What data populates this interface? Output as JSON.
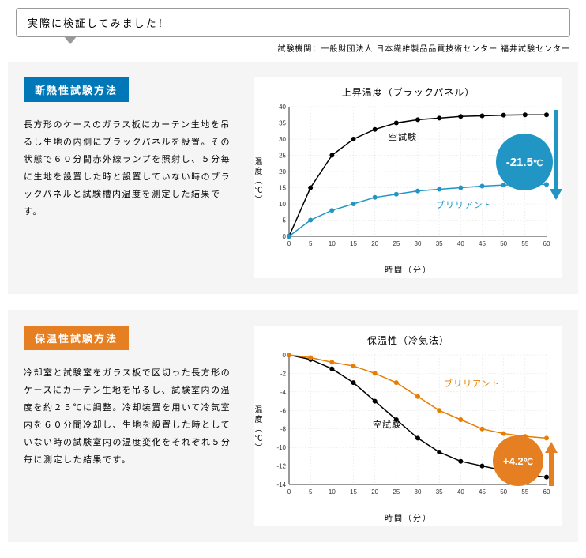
{
  "header": {
    "bubble_text": "実際に検証してみました！",
    "institution": "試験機関：一般財団法人 日本繊維製品品質技術センター 福井試験センター"
  },
  "panel1": {
    "badge": "断熱性試験方法",
    "desc": "長方形のケースのガラス板にカーテン生地を吊るし生地の内側にブラックパネルを設置。その状態で６０分間赤外線ランプを照射し、５分毎に生地を設置した時と設置していない時のブラックパネルと試験槽内温度を測定した結果です。",
    "chart": {
      "title": "上昇温度（ブラックパネル）",
      "ylabel": "温度（℃）",
      "xlabel": "時間（分）",
      "x_ticks": [
        0,
        5,
        10,
        15,
        20,
        25,
        30,
        35,
        40,
        45,
        50,
        55,
        60
      ],
      "y_ticks": [
        0,
        5,
        10,
        15,
        20,
        25,
        30,
        35,
        40
      ],
      "xlim": [
        0,
        60
      ],
      "ylim": [
        0,
        40
      ],
      "series": [
        {
          "name": "空試験",
          "label": "空試験",
          "color": "#000000",
          "points": [
            [
              0,
              0
            ],
            [
              5,
              15
            ],
            [
              10,
              25
            ],
            [
              15,
              30
            ],
            [
              20,
              33
            ],
            [
              25,
              35
            ],
            [
              30,
              36
            ],
            [
              35,
              36.5
            ],
            [
              40,
              37
            ],
            [
              45,
              37.2
            ],
            [
              50,
              37.4
            ],
            [
              55,
              37.5
            ],
            [
              60,
              37.5
            ]
          ]
        },
        {
          "name": "ブリリアント",
          "label": "ブリリアント",
          "color": "#2196c4",
          "points": [
            [
              0,
              0
            ],
            [
              5,
              5
            ],
            [
              10,
              8
            ],
            [
              15,
              10
            ],
            [
              20,
              12
            ],
            [
              25,
              13
            ],
            [
              30,
              14
            ],
            [
              35,
              14.5
            ],
            [
              40,
              15
            ],
            [
              45,
              15.5
            ],
            [
              50,
              15.8
            ],
            [
              55,
              16
            ],
            [
              60,
              16
            ]
          ]
        }
      ],
      "badge_value": "-21.5",
      "badge_unit": "℃",
      "badge_color": "#2196c4",
      "grid_color": "#e0e0e0",
      "background": "#ffffff",
      "marker_size": 3,
      "line_width": 1.5
    }
  },
  "panel2": {
    "badge": "保温性試験方法",
    "desc": "冷却室と試験室をガラス板で区切った長方形のケースにカーテン生地を吊るし、試験室内の温度を約２５℃に調整。冷却装置を用いて冷気室内を６０分間冷却し、生地を設置した時としていない時の試験室内の温度変化をそれぞれ５分毎に測定した結果です。",
    "chart": {
      "title": "保温性（冷気法）",
      "ylabel": "温度（℃）",
      "xlabel": "時間（分）",
      "x_ticks": [
        0,
        5,
        10,
        15,
        20,
        25,
        30,
        35,
        40,
        45,
        50,
        55,
        60
      ],
      "y_ticks": [
        -14,
        -12,
        -10,
        -8,
        -6,
        -4,
        -2,
        0
      ],
      "xlim": [
        0,
        60
      ],
      "ylim": [
        -14,
        0
      ],
      "series": [
        {
          "name": "空試験",
          "label": "空試験",
          "color": "#000000",
          "points": [
            [
              0,
              0
            ],
            [
              5,
              -0.5
            ],
            [
              10,
              -1.5
            ],
            [
              15,
              -3
            ],
            [
              20,
              -5
            ],
            [
              25,
              -7
            ],
            [
              30,
              -9
            ],
            [
              35,
              -10.5
            ],
            [
              40,
              -11.5
            ],
            [
              45,
              -12
            ],
            [
              50,
              -12.5
            ],
            [
              55,
              -13
            ],
            [
              60,
              -13.2
            ]
          ]
        },
        {
          "name": "ブリリアント",
          "label": "ブリリアント",
          "color": "#e67e00",
          "points": [
            [
              0,
              0
            ],
            [
              5,
              -0.3
            ],
            [
              10,
              -0.8
            ],
            [
              15,
              -1.2
            ],
            [
              20,
              -2
            ],
            [
              25,
              -3
            ],
            [
              30,
              -4.5
            ],
            [
              35,
              -6
            ],
            [
              40,
              -7
            ],
            [
              45,
              -8
            ],
            [
              50,
              -8.5
            ],
            [
              55,
              -8.8
            ],
            [
              60,
              -9
            ]
          ]
        }
      ],
      "badge_value": "+4.2",
      "badge_unit": "℃",
      "badge_color": "#e67e22",
      "grid_color": "#e0e0e0",
      "background": "#ffffff",
      "marker_size": 3,
      "line_width": 1.5
    }
  }
}
